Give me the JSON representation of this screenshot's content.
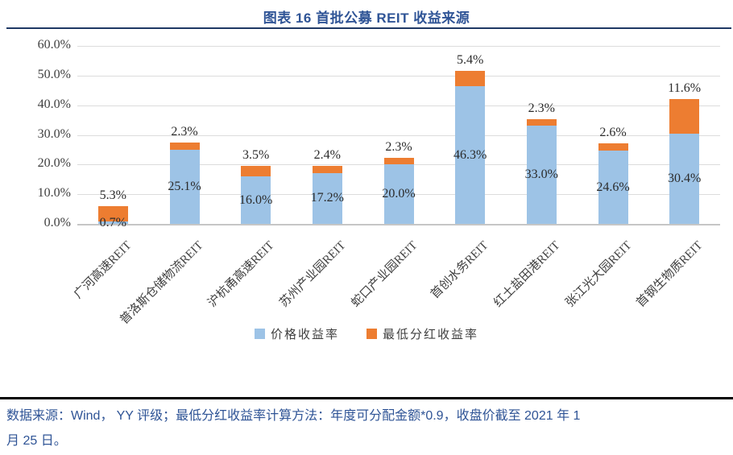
{
  "header": {
    "title": "图表 16 首批公募 REIT 收益来源"
  },
  "colors": {
    "title_text": "#2F5496",
    "title_rule": "#1F3864",
    "footer_text": "#2F5496",
    "footer_rule": "#000000",
    "gridline": "#DCDCDC",
    "axis_line": "#C6C6C6",
    "series_price": "#9DC3E6",
    "series_dividend": "#ED7D31"
  },
  "chart_data": {
    "type": "bar",
    "stacked": true,
    "title": "图表 16 首批公募 REIT 收益来源",
    "categories": [
      "广河高速REIT",
      "普洛斯仓储物流REIT",
      "沪杭甬高速REIT",
      "苏州产业园REIT",
      "蛇口产业园REIT",
      "首创水务REIT",
      "红土盐田港REIT",
      "张江光大园REIT",
      "首钢生物质REIT"
    ],
    "series": [
      {
        "name": "价格收益率",
        "color": "#9DC3E6",
        "values": [
          0.7,
          25.1,
          16.0,
          17.2,
          20.0,
          46.3,
          33.0,
          24.6,
          30.4
        ]
      },
      {
        "name": "最低分红收益率",
        "color": "#ED7D31",
        "values": [
          5.3,
          2.3,
          3.5,
          2.4,
          2.3,
          5.4,
          2.3,
          2.6,
          11.6
        ]
      }
    ],
    "ylim": [
      0,
      60
    ],
    "ytick_step": 10,
    "yticks": [
      "0.0%",
      "10.0%",
      "20.0%",
      "30.0%",
      "40.0%",
      "50.0%",
      "60.0%"
    ],
    "grid": true,
    "legend_position": "bottom"
  },
  "footer": {
    "lines": [
      "数据来源：Wind， YY 评级；最低分红收益率计算方法：年度可分配金额*0.9，收盘价截至 2021 年 1",
      "月 25 日。"
    ]
  }
}
